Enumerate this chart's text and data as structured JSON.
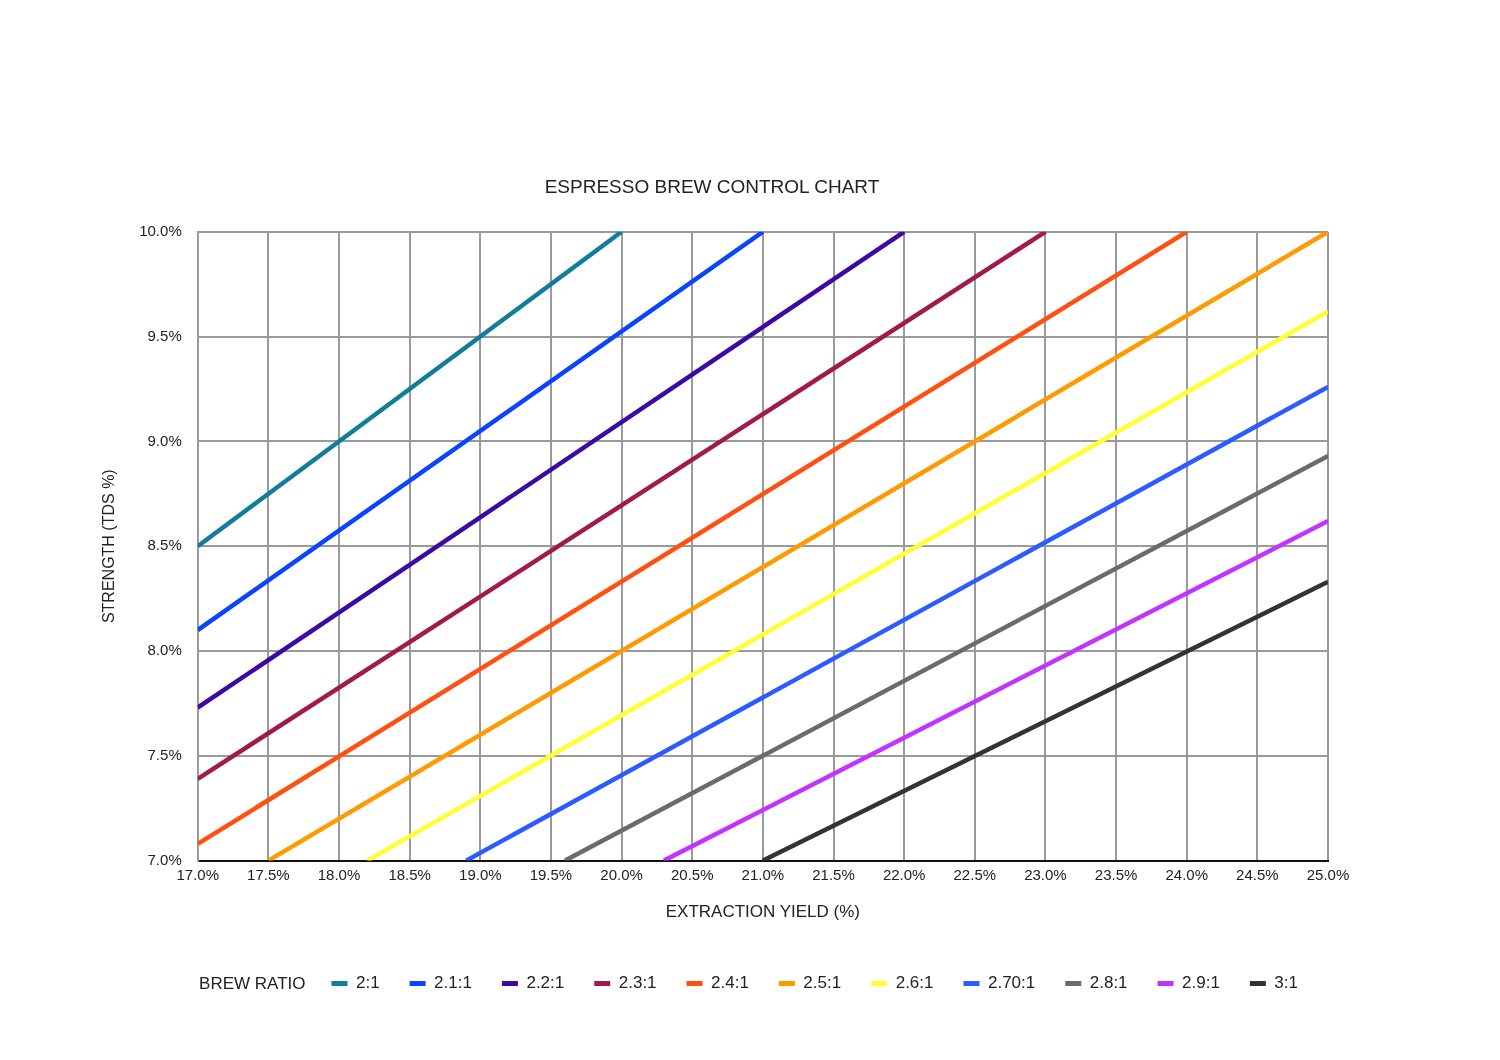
{
  "chart_data": {
    "type": "line",
    "title": "ESPRESSO BREW CONTROL CHART",
    "xlabel": "EXTRACTION YIELD (%)",
    "ylabel": "STRENGTH (TDS %)",
    "legend_title": "BREW RATIO",
    "legend": "bottom",
    "grid": true,
    "xlim": [
      17,
      25
    ],
    "ylim": [
      7,
      10
    ],
    "xticks": [
      {
        "value": 17,
        "label": "17.0%"
      },
      {
        "value": 17.5,
        "label": "17.5%"
      },
      {
        "value": 18,
        "label": "18.0%"
      },
      {
        "value": 18.5,
        "label": "18.5%"
      },
      {
        "value": 19,
        "label": "19.0%"
      },
      {
        "value": 19.5,
        "label": "19.5%"
      },
      {
        "value": 20,
        "label": "20.0%"
      },
      {
        "value": 20.5,
        "label": "20.5%"
      },
      {
        "value": 21,
        "label": "21.0%"
      },
      {
        "value": 21.5,
        "label": "21.5%"
      },
      {
        "value": 22,
        "label": "22.0%"
      },
      {
        "value": 22.5,
        "label": "22.5%"
      },
      {
        "value": 23,
        "label": "23.0%"
      },
      {
        "value": 23.5,
        "label": "23.5%"
      },
      {
        "value": 24,
        "label": "24.0%"
      },
      {
        "value": 24.5,
        "label": "24.5%"
      },
      {
        "value": 25,
        "label": "25.0%"
      }
    ],
    "yticks": [
      {
        "value": 7,
        "label": "7.0%"
      },
      {
        "value": 7.5,
        "label": "7.5%"
      },
      {
        "value": 8,
        "label": "8.0%"
      },
      {
        "value": 8.5,
        "label": "8.5%"
      },
      {
        "value": 9,
        "label": "9.0%"
      },
      {
        "value": 9.5,
        "label": "9.5%"
      },
      {
        "value": 10,
        "label": "10.0%"
      }
    ],
    "series": [
      {
        "name": "2:1",
        "color": "#127c9c",
        "x": [
          17,
          20
        ],
        "values": [
          8.5,
          10
        ]
      },
      {
        "name": "2.1:1",
        "color": "#0a44ff",
        "x": [
          17,
          21
        ],
        "values": [
          8.1,
          10
        ]
      },
      {
        "name": "2.2:1",
        "color": "#3a0aa2",
        "x": [
          17,
          22
        ],
        "values": [
          7.73,
          10
        ]
      },
      {
        "name": "2.3:1",
        "color": "#a01a4c",
        "x": [
          17,
          23
        ],
        "values": [
          7.39,
          10
        ]
      },
      {
        "name": "2.4:1",
        "color": "#ff5010",
        "x": [
          17,
          24
        ],
        "values": [
          7.08,
          10
        ]
      },
      {
        "name": "2.5:1",
        "color": "#ff9a00",
        "x": [
          17.5,
          25
        ],
        "values": [
          7,
          10
        ]
      },
      {
        "name": "2.6:1",
        "color": "#ffff33",
        "x": [
          18.2,
          25
        ],
        "values": [
          7,
          9.62
        ]
      },
      {
        "name": "2.70:1",
        "color": "#2a5cff",
        "x": [
          18.9,
          25
        ],
        "values": [
          7,
          9.26
        ]
      },
      {
        "name": "2.8:1",
        "color": "#6b6b6b",
        "x": [
          19.6,
          25
        ],
        "values": [
          7,
          8.93
        ]
      },
      {
        "name": "2.9:1",
        "color": "#c233ff",
        "x": [
          20.3,
          25
        ],
        "values": [
          7,
          8.62
        ]
      },
      {
        "name": "3:1",
        "color": "#333333",
        "x": [
          21,
          25
        ],
        "values": [
          7,
          8.33
        ]
      }
    ]
  }
}
